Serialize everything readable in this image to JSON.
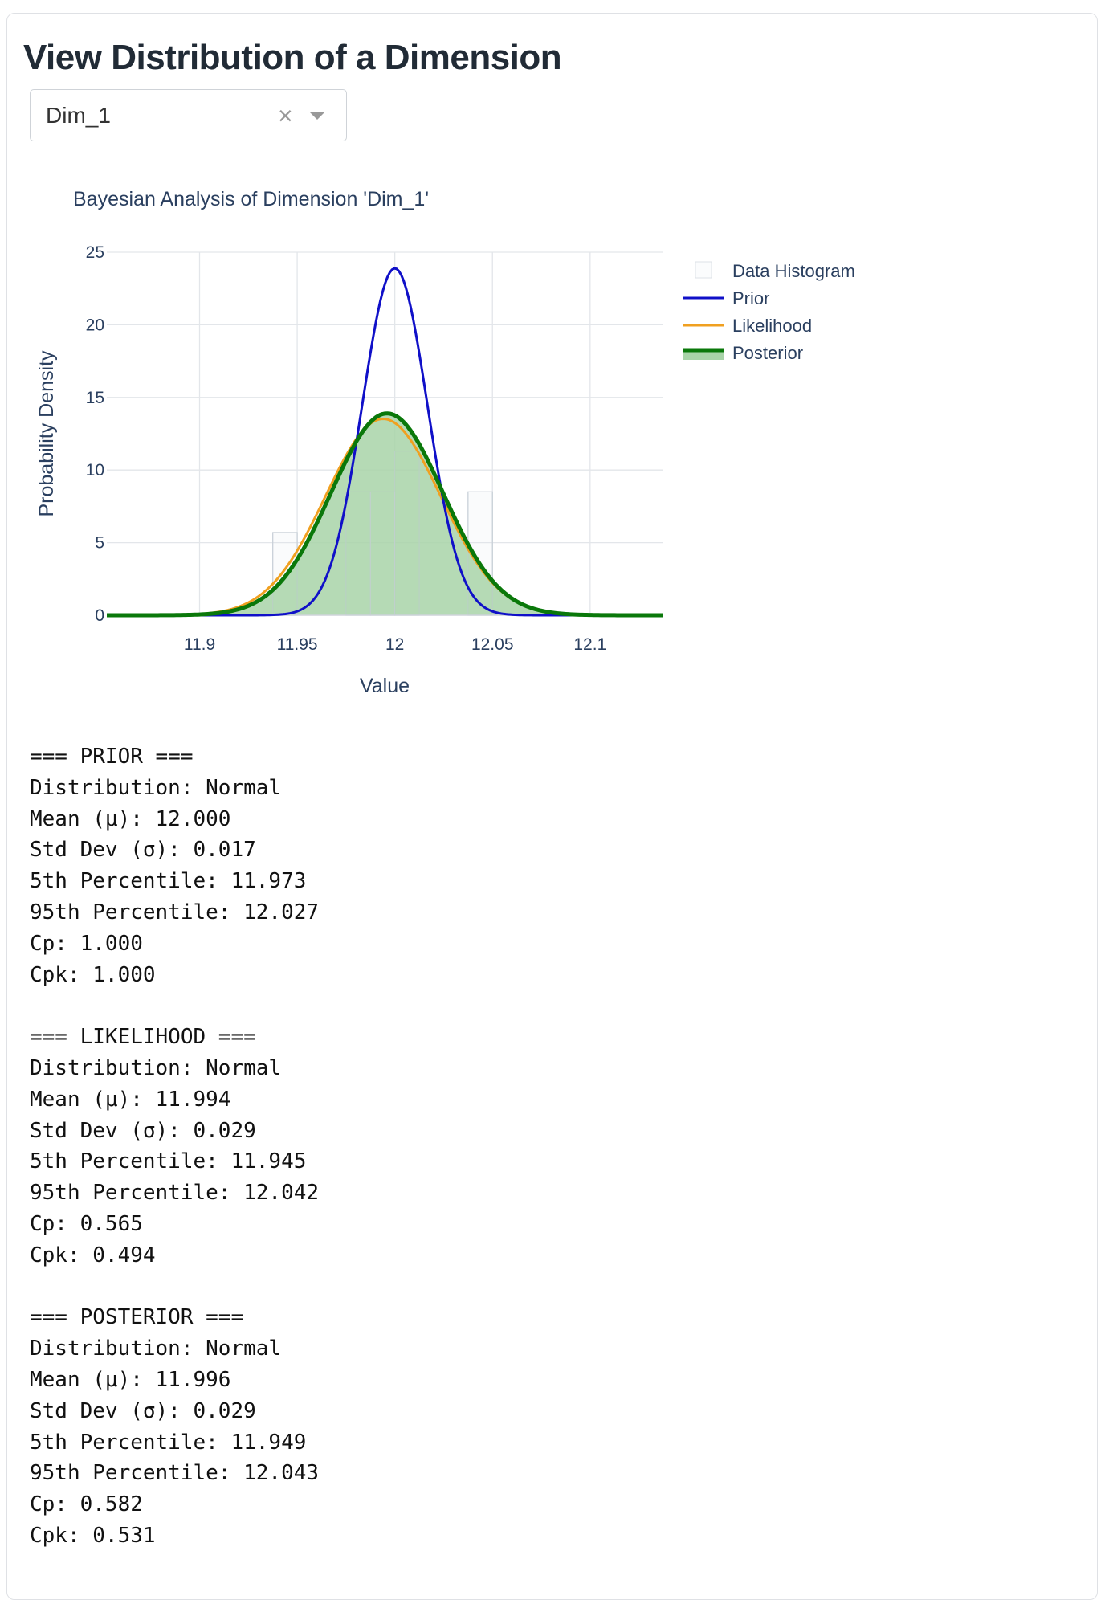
{
  "page": {
    "title": "View Distribution of a Dimension"
  },
  "dropdown": {
    "selected": "Dim_1",
    "clear_icon": "×"
  },
  "chart_data": {
    "type": "line",
    "title": "Bayesian Analysis of Dimension 'Dim_1'",
    "xlabel": "Value",
    "ylabel": "Probability Density",
    "xlim": [
      11.8525,
      12.1375
    ],
    "ylim": [
      0,
      25
    ],
    "x_ticks": [
      "11.9",
      "11.95",
      "12",
      "12.05",
      "12.1"
    ],
    "x_tick_values": [
      11.9,
      11.95,
      12.0,
      12.05,
      12.1
    ],
    "y_ticks": [
      "0",
      "5",
      "10",
      "15",
      "20",
      "25"
    ],
    "y_tick_values": [
      0,
      5,
      10,
      15,
      20,
      25
    ],
    "grid": true,
    "legend_position": "top-right",
    "legend": [
      {
        "name": "Data Histogram",
        "style": "box"
      },
      {
        "name": "Prior",
        "style": "line"
      },
      {
        "name": "Likelihood",
        "style": "line"
      },
      {
        "name": "Posterior",
        "style": "area"
      }
    ],
    "histogram": {
      "bin_width": 0.0125,
      "bins": [
        {
          "x0": 11.9375,
          "x1": 11.95,
          "density": 5.7
        },
        {
          "x0": 11.975,
          "x1": 11.9875,
          "density": 8.5
        },
        {
          "x0": 11.9875,
          "x1": 12.0,
          "density": 8.5
        },
        {
          "x0": 12.0,
          "x1": 12.0125,
          "density": 11.3
        },
        {
          "x0": 12.0375,
          "x1": 12.05,
          "density": 8.5
        }
      ],
      "color": "#c8d0d8"
    },
    "series": [
      {
        "name": "Prior",
        "distribution": "normal",
        "mean": 12.0,
        "sd": 0.0167,
        "color": "#1010c8"
      },
      {
        "name": "Likelihood",
        "distribution": "normal",
        "mean": 11.994,
        "sd": 0.0295,
        "color": "#f0a020"
      },
      {
        "name": "Posterior",
        "distribution": "normal",
        "mean": 11.996,
        "sd": 0.0287,
        "color": "#0a780a",
        "fill": "#a8d4a8"
      }
    ]
  },
  "stats": {
    "lines": [
      "=== PRIOR ===",
      "Distribution: Normal",
      "Mean (μ): 12.000",
      "Std Dev (σ): 0.017",
      "5th Percentile: 11.973",
      "95th Percentile: 12.027",
      "Cp: 1.000",
      "Cpk: 1.000",
      "",
      "=== LIKELIHOOD ===",
      "Distribution: Normal",
      "Mean (μ): 11.994",
      "Std Dev (σ): 0.029",
      "5th Percentile: 11.945",
      "95th Percentile: 12.042",
      "Cp: 0.565",
      "Cpk: 0.494",
      "",
      "=== POSTERIOR ===",
      "Distribution: Normal",
      "Mean (μ): 11.996",
      "Std Dev (σ): 0.029",
      "5th Percentile: 11.949",
      "95th Percentile: 12.043",
      "Cp: 0.582",
      "Cpk: 0.531"
    ]
  }
}
